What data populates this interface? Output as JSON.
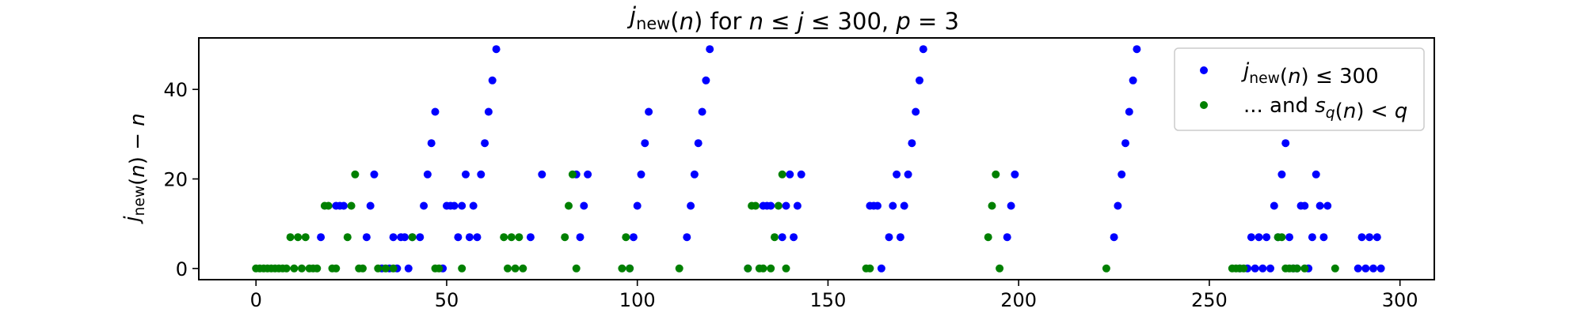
{
  "chart_data": {
    "type": "scatter",
    "title": {
      "j": "j",
      "sub": "new",
      "rest": "(n) for n ≤ j ≤ 300, p = 3"
    },
    "ylabel": {
      "j": "j",
      "sub": "new",
      "rest": "(n) − n"
    },
    "xlabel": "",
    "xlim": [
      -15,
      309
    ],
    "ylim": [
      -2.5,
      51.5
    ],
    "xticks": [
      0,
      50,
      100,
      150,
      200,
      250,
      300
    ],
    "yticks": [
      0,
      20,
      40
    ],
    "grid": false,
    "legend_position": "top-right",
    "series": [
      {
        "legend": {
          "j": "j",
          "sub": "new",
          "rest": "(n) ≤ 300"
        },
        "color": "#0000ff",
        "points": [
          [
            17,
            7
          ],
          [
            21,
            14
          ],
          [
            22,
            14
          ],
          [
            23,
            14
          ],
          [
            29,
            7
          ],
          [
            30,
            14
          ],
          [
            31,
            21
          ],
          [
            33,
            0
          ],
          [
            35,
            0
          ],
          [
            36,
            7
          ],
          [
            37,
            0
          ],
          [
            38,
            7
          ],
          [
            39,
            7
          ],
          [
            40,
            0
          ],
          [
            41,
            7
          ],
          [
            43,
            7
          ],
          [
            44,
            14
          ],
          [
            45,
            21
          ],
          [
            46,
            28
          ],
          [
            47,
            35
          ],
          [
            49,
            0
          ],
          [
            50,
            14
          ],
          [
            51,
            14
          ],
          [
            52,
            14
          ],
          [
            53,
            7
          ],
          [
            54,
            14
          ],
          [
            55,
            21
          ],
          [
            56,
            7
          ],
          [
            57,
            14
          ],
          [
            58,
            7
          ],
          [
            59,
            21
          ],
          [
            60,
            28
          ],
          [
            61,
            35
          ],
          [
            62,
            42
          ],
          [
            63,
            49
          ],
          [
            72,
            7
          ],
          [
            75,
            21
          ],
          [
            84,
            21
          ],
          [
            85,
            7
          ],
          [
            86,
            14
          ],
          [
            87,
            21
          ],
          [
            98,
            0
          ],
          [
            99,
            7
          ],
          [
            100,
            14
          ],
          [
            101,
            21
          ],
          [
            102,
            28
          ],
          [
            103,
            35
          ],
          [
            113,
            7
          ],
          [
            114,
            14
          ],
          [
            115,
            21
          ],
          [
            116,
            28
          ],
          [
            117,
            35
          ],
          [
            118,
            42
          ],
          [
            119,
            49
          ],
          [
            129,
            0
          ],
          [
            133,
            14
          ],
          [
            134,
            14
          ],
          [
            135,
            14
          ],
          [
            138,
            7
          ],
          [
            139,
            14
          ],
          [
            140,
            21
          ],
          [
            141,
            7
          ],
          [
            142,
            14
          ],
          [
            143,
            21
          ],
          [
            161,
            14
          ],
          [
            162,
            14
          ],
          [
            163,
            14
          ],
          [
            164,
            0
          ],
          [
            166,
            7
          ],
          [
            167,
            14
          ],
          [
            168,
            21
          ],
          [
            169,
            7
          ],
          [
            170,
            14
          ],
          [
            171,
            21
          ],
          [
            172,
            28
          ],
          [
            173,
            35
          ],
          [
            174,
            42
          ],
          [
            175,
            49
          ],
          [
            197,
            7
          ],
          [
            198,
            14
          ],
          [
            199,
            21
          ],
          [
            225,
            7
          ],
          [
            226,
            14
          ],
          [
            227,
            21
          ],
          [
            228,
            28
          ],
          [
            229,
            35
          ],
          [
            230,
            42
          ],
          [
            231,
            49
          ],
          [
            258,
            0
          ],
          [
            260,
            0
          ],
          [
            261,
            7
          ],
          [
            262,
            0
          ],
          [
            263,
            7
          ],
          [
            264,
            0
          ],
          [
            265,
            7
          ],
          [
            266,
            0
          ],
          [
            267,
            14
          ],
          [
            268,
            7
          ],
          [
            269,
            21
          ],
          [
            270,
            28
          ],
          [
            271,
            7
          ],
          [
            272,
            0
          ],
          [
            273,
            0
          ],
          [
            274,
            14
          ],
          [
            275,
            14
          ],
          [
            276,
            0
          ],
          [
            277,
            7
          ],
          [
            278,
            21
          ],
          [
            279,
            14
          ],
          [
            280,
            7
          ],
          [
            281,
            14
          ],
          [
            289,
            0
          ],
          [
            290,
            7
          ],
          [
            291,
            0
          ],
          [
            292,
            7
          ],
          [
            293,
            0
          ],
          [
            294,
            7
          ],
          [
            295,
            0
          ]
        ]
      },
      {
        "legend": {
          "j": "",
          "sub": "",
          "rest": "... and s_q(n) < q"
        },
        "color": "#008000",
        "points": [
          [
            0,
            0
          ],
          [
            1,
            0
          ],
          [
            2,
            0
          ],
          [
            3,
            0
          ],
          [
            4,
            0
          ],
          [
            5,
            0
          ],
          [
            6,
            0
          ],
          [
            7,
            0
          ],
          [
            8,
            0
          ],
          [
            9,
            7
          ],
          [
            10,
            0
          ],
          [
            11,
            7
          ],
          [
            12,
            0
          ],
          [
            13,
            7
          ],
          [
            14,
            0
          ],
          [
            15,
            0
          ],
          [
            16,
            0
          ],
          [
            18,
            14
          ],
          [
            19,
            14
          ],
          [
            20,
            0
          ],
          [
            21,
            0
          ],
          [
            24,
            7
          ],
          [
            25,
            14
          ],
          [
            26,
            21
          ],
          [
            27,
            0
          ],
          [
            28,
            0
          ],
          [
            32,
            0
          ],
          [
            34,
            0
          ],
          [
            36,
            0
          ],
          [
            41,
            7
          ],
          [
            47,
            0
          ],
          [
            48,
            0
          ],
          [
            54,
            0
          ],
          [
            65,
            7
          ],
          [
            66,
            0
          ],
          [
            67,
            7
          ],
          [
            68,
            0
          ],
          [
            69,
            7
          ],
          [
            70,
            0
          ],
          [
            81,
            7
          ],
          [
            82,
            14
          ],
          [
            83,
            21
          ],
          [
            84,
            0
          ],
          [
            96,
            0
          ],
          [
            97,
            7
          ],
          [
            98,
            0
          ],
          [
            111,
            0
          ],
          [
            129,
            0
          ],
          [
            130,
            14
          ],
          [
            131,
            14
          ],
          [
            132,
            0
          ],
          [
            133,
            0
          ],
          [
            135,
            0
          ],
          [
            136,
            7
          ],
          [
            137,
            14
          ],
          [
            138,
            21
          ],
          [
            139,
            0
          ],
          [
            160,
            0
          ],
          [
            161,
            0
          ],
          [
            192,
            7
          ],
          [
            193,
            14
          ],
          [
            194,
            21
          ],
          [
            195,
            0
          ],
          [
            223,
            0
          ],
          [
            256,
            0
          ],
          [
            257,
            0
          ],
          [
            258,
            0
          ],
          [
            259,
            0
          ],
          [
            268,
            7
          ],
          [
            269,
            7
          ],
          [
            270,
            0
          ],
          [
            271,
            0
          ],
          [
            272,
            0
          ],
          [
            273,
            0
          ],
          [
            275,
            0
          ],
          [
            283,
            0
          ]
        ]
      }
    ]
  }
}
